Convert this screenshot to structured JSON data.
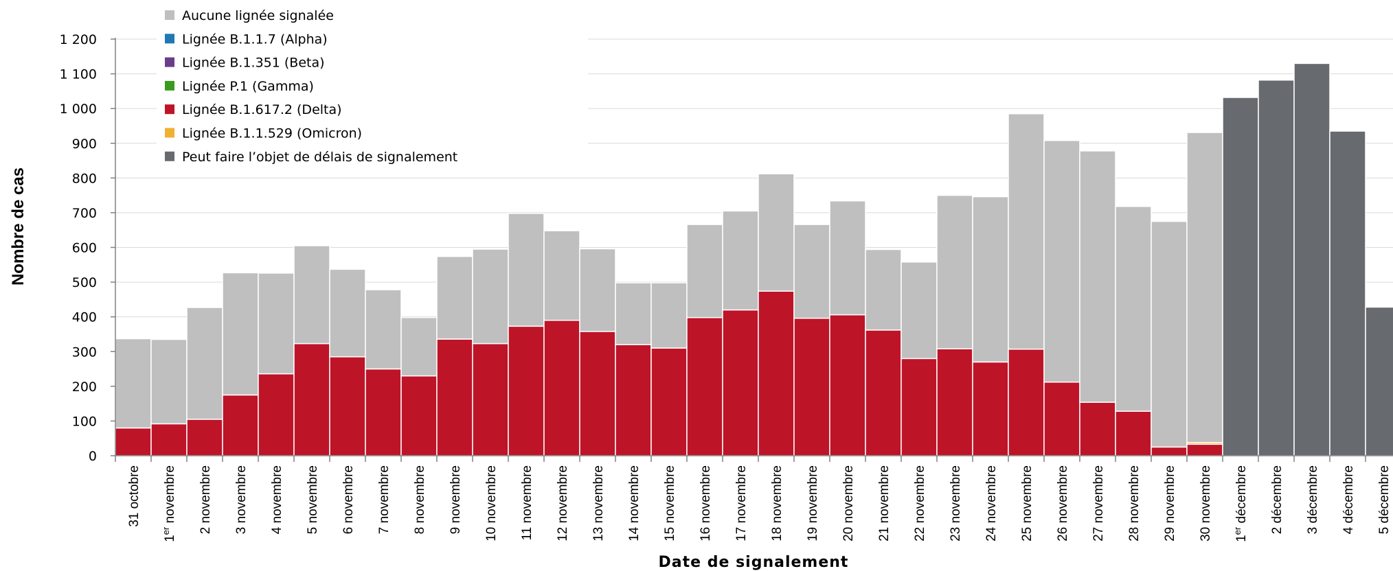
{
  "chart_data": {
    "type": "bar",
    "stacked": true,
    "xlabel": "Date de signalement",
    "ylabel": "Nombre de cas",
    "ylim": [
      0,
      1200
    ],
    "yticks": [
      0,
      100,
      200,
      300,
      400,
      500,
      600,
      700,
      800,
      900,
      1000,
      1100,
      1200
    ],
    "ytick_labels": [
      "0",
      "100",
      "200",
      "300",
      "400",
      "500",
      "600",
      "700",
      "800",
      "900",
      "1 000",
      "1 100",
      "1 200"
    ],
    "grid": "horizontal",
    "legend_position": "top-left",
    "categories": [
      "31 octobre",
      "1er novembre",
      "2 novembre",
      "3 novembre",
      "4 novembre",
      "5 novembre",
      "6 novembre",
      "7 novembre",
      "8 novembre",
      "9 novembre",
      "10 novembre",
      "11 novembre",
      "12 novembre",
      "13 novembre",
      "14 novembre",
      "15 novembre",
      "16 novembre",
      "17 novembre",
      "18 novembre",
      "19 novembre",
      "20 novembre",
      "21 novembre",
      "22 novembre",
      "23 novembre",
      "24 novembre",
      "25 novembre",
      "26 novembre",
      "27 novembre",
      "28 novembre",
      "29 novembre",
      "30 novembre",
      "1er décembre",
      "2 décembre",
      "3 décembre",
      "4 décembre",
      "5 décembre"
    ],
    "series": [
      {
        "name": "Aucune lignée signalée",
        "color": "#bfbfbf",
        "values": [
          257,
          243,
          322,
          352,
          290,
          282,
          252,
          228,
          168,
          238,
          272,
          325,
          258,
          238,
          178,
          188,
          268,
          285,
          338,
          270,
          328,
          232,
          278,
          442,
          476,
          678,
          696,
          724,
          590,
          650,
          893,
          0,
          0,
          0,
          0,
          0
        ]
      },
      {
        "name": "Lignée B.1.1.7 (Alpha)",
        "color": "#1f78b4",
        "values": [
          0,
          0,
          0,
          0,
          0,
          0,
          0,
          0,
          0,
          0,
          0,
          0,
          0,
          0,
          0,
          0,
          0,
          0,
          0,
          0,
          0,
          0,
          0,
          0,
          0,
          0,
          0,
          0,
          0,
          0,
          0,
          0,
          0,
          0,
          0,
          0
        ]
      },
      {
        "name": "Lignée B.1.351 (Beta)",
        "color": "#6a3d8a",
        "values": [
          0,
          0,
          0,
          0,
          0,
          0,
          0,
          0,
          0,
          0,
          0,
          0,
          0,
          0,
          0,
          0,
          0,
          0,
          0,
          0,
          0,
          0,
          0,
          0,
          0,
          0,
          0,
          0,
          0,
          0,
          0,
          0,
          0,
          0,
          0,
          0
        ]
      },
      {
        "name": "Lignée P.1 (Gamma)",
        "color": "#3a9a1e",
        "values": [
          0,
          0,
          0,
          0,
          0,
          0,
          0,
          0,
          0,
          0,
          0,
          0,
          0,
          0,
          0,
          0,
          0,
          0,
          0,
          0,
          0,
          0,
          0,
          0,
          0,
          0,
          0,
          0,
          0,
          0,
          0,
          0,
          0,
          0,
          0,
          0
        ]
      },
      {
        "name": "Lignée B.1.617.2 (Delta)",
        "color": "#be1428",
        "values": [
          80,
          92,
          105,
          175,
          236,
          323,
          285,
          250,
          230,
          336,
          323,
          373,
          390,
          358,
          320,
          310,
          398,
          420,
          474,
          396,
          406,
          362,
          280,
          308,
          270,
          307,
          212,
          154,
          128,
          25,
          33,
          0,
          0,
          0,
          0,
          0
        ]
      },
      {
        "name": "Lignée B.1.1.529 (Omicron)",
        "color": "#f0b032",
        "values": [
          0,
          0,
          0,
          0,
          0,
          0,
          0,
          0,
          0,
          0,
          0,
          0,
          0,
          0,
          0,
          0,
          0,
          0,
          0,
          0,
          0,
          0,
          0,
          0,
          0,
          0,
          0,
          0,
          0,
          0,
          5,
          0,
          0,
          0,
          0,
          0
        ]
      },
      {
        "name": "Peut faire l’objet de délais de signalement",
        "color": "#676a6f",
        "values": [
          0,
          0,
          0,
          0,
          0,
          0,
          0,
          0,
          0,
          0,
          0,
          0,
          0,
          0,
          0,
          0,
          0,
          0,
          0,
          0,
          0,
          0,
          0,
          0,
          0,
          0,
          0,
          0,
          0,
          0,
          0,
          1032,
          1082,
          1130,
          935,
          428
        ]
      }
    ]
  }
}
